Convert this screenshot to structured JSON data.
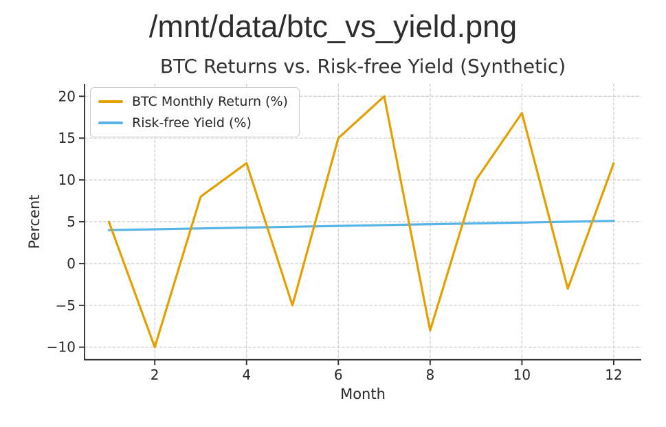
{
  "page": {
    "title": "/mnt/data/btc_vs_yield.png"
  },
  "chart_data": {
    "type": "line",
    "title": "BTC Returns vs. Risk-free Yield (Synthetic)",
    "xlabel": "Month",
    "ylabel": "Percent",
    "x": [
      1,
      2,
      3,
      4,
      5,
      6,
      7,
      8,
      9,
      10,
      11,
      12
    ],
    "series": [
      {
        "name": "BTC Monthly Return (%)",
        "color": "#E69F00",
        "values": [
          5,
          -10,
          8,
          12,
          -5,
          15,
          20,
          -8,
          10,
          18,
          -3,
          12
        ]
      },
      {
        "name": "Risk-free Yield (%)",
        "color": "#56B4E9",
        "values": [
          4.0,
          4.1,
          4.2,
          4.3,
          4.4,
          4.5,
          4.6,
          4.7,
          4.8,
          4.9,
          5.0,
          5.1
        ]
      }
    ],
    "xticks": [
      2,
      4,
      6,
      8,
      10,
      12
    ],
    "yticks": [
      20,
      15,
      10,
      5,
      0,
      -5,
      -10
    ],
    "xlim": [
      0.47,
      12.6
    ],
    "ylim": [
      -11.5,
      21.5
    ],
    "grid": true,
    "legend_position": "upper-left",
    "style": {
      "grid_color": "#cccccc",
      "spine_color": "#333333",
      "text_color": "#262626",
      "title_color": "#333333",
      "background": "#ffffff"
    }
  }
}
